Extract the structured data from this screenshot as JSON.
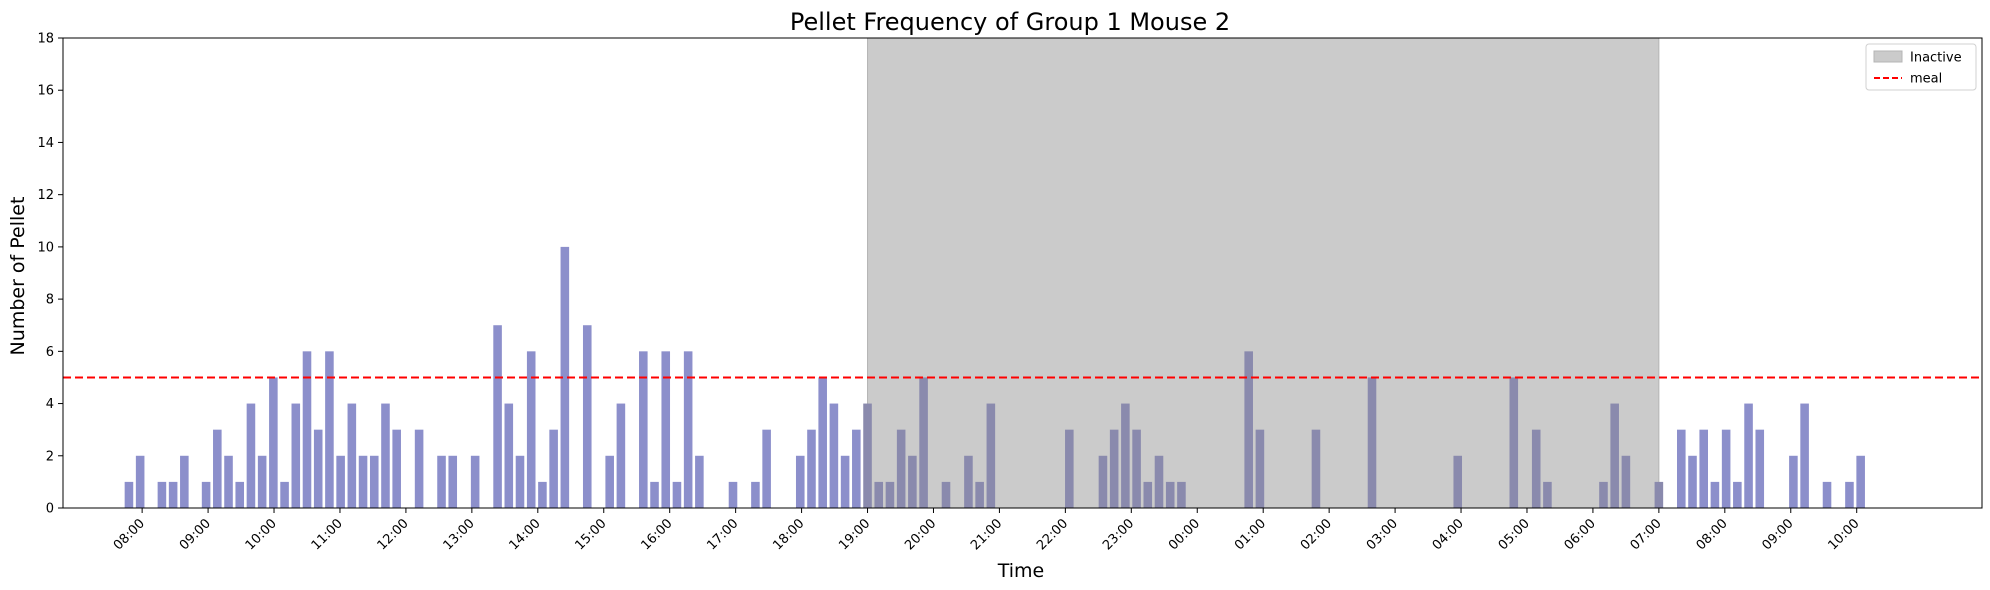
{
  "chart_data": {
    "type": "bar",
    "title": "Pellet Frequency of Group 1 Mouse 2",
    "xlabel": "Time",
    "ylabel": "Number of Pellet",
    "ylim": [
      0,
      18
    ],
    "yticks": [
      0,
      2,
      4,
      6,
      8,
      10,
      12,
      14,
      16,
      18
    ],
    "x_range_hours": [
      6.8,
      35.9
    ],
    "xticks": [
      {
        "hour": 8,
        "label": "08:00"
      },
      {
        "hour": 9,
        "label": "09:00"
      },
      {
        "hour": 10,
        "label": "10:00"
      },
      {
        "hour": 11,
        "label": "11:00"
      },
      {
        "hour": 12,
        "label": "12:00"
      },
      {
        "hour": 13,
        "label": "13:00"
      },
      {
        "hour": 14,
        "label": "14:00"
      },
      {
        "hour": 15,
        "label": "15:00"
      },
      {
        "hour": 16,
        "label": "16:00"
      },
      {
        "hour": 17,
        "label": "17:00"
      },
      {
        "hour": 18,
        "label": "18:00"
      },
      {
        "hour": 19,
        "label": "19:00"
      },
      {
        "hour": 20,
        "label": "20:00"
      },
      {
        "hour": 21,
        "label": "21:00"
      },
      {
        "hour": 22,
        "label": "22:00"
      },
      {
        "hour": 23,
        "label": "23:00"
      },
      {
        "hour": 24,
        "label": "00:00"
      },
      {
        "hour": 25,
        "label": "01:00"
      },
      {
        "hour": 26,
        "label": "02:00"
      },
      {
        "hour": 27,
        "label": "03:00"
      },
      {
        "hour": 28,
        "label": "04:00"
      },
      {
        "hour": 29,
        "label": "05:00"
      },
      {
        "hour": 30,
        "label": "06:00"
      },
      {
        "hour": 31,
        "label": "07:00"
      },
      {
        "hour": 32,
        "label": "08:00"
      },
      {
        "hour": 33,
        "label": "09:00"
      },
      {
        "hour": 34,
        "label": "10:00"
      }
    ],
    "inactive_period_hours": [
      19.0,
      31.0
    ],
    "meal_threshold": 5,
    "series": [
      {
        "name": "pellets",
        "color": "#8c8fcb",
        "bar_width_hours": 0.13,
        "points": [
          [
            7.8,
            1
          ],
          [
            7.97,
            2
          ],
          [
            8.3,
            1
          ],
          [
            8.47,
            1
          ],
          [
            8.64,
            2
          ],
          [
            8.97,
            1
          ],
          [
            9.14,
            3
          ],
          [
            9.31,
            2
          ],
          [
            9.48,
            1
          ],
          [
            9.65,
            4
          ],
          [
            9.82,
            2
          ],
          [
            9.99,
            5
          ],
          [
            10.16,
            1
          ],
          [
            10.33,
            4
          ],
          [
            10.5,
            6
          ],
          [
            10.67,
            3
          ],
          [
            10.84,
            6
          ],
          [
            11.01,
            2
          ],
          [
            11.18,
            4
          ],
          [
            11.35,
            2
          ],
          [
            11.52,
            2
          ],
          [
            11.69,
            4
          ],
          [
            11.86,
            3
          ],
          [
            12.2,
            3
          ],
          [
            12.54,
            2
          ],
          [
            12.71,
            2
          ],
          [
            13.05,
            2
          ],
          [
            13.39,
            7
          ],
          [
            13.56,
            4
          ],
          [
            13.73,
            2
          ],
          [
            13.9,
            6
          ],
          [
            14.07,
            1
          ],
          [
            14.24,
            3
          ],
          [
            14.41,
            10
          ],
          [
            14.75,
            7
          ],
          [
            15.09,
            2
          ],
          [
            15.26,
            4
          ],
          [
            15.6,
            6
          ],
          [
            15.77,
            1
          ],
          [
            15.94,
            6
          ],
          [
            16.11,
            1
          ],
          [
            16.28,
            6
          ],
          [
            16.45,
            2
          ],
          [
            16.96,
            1
          ],
          [
            17.3,
            1
          ],
          [
            17.47,
            3
          ],
          [
            17.98,
            2
          ],
          [
            18.15,
            3
          ],
          [
            18.32,
            5
          ],
          [
            18.49,
            4
          ],
          [
            18.66,
            2
          ],
          [
            18.83,
            3
          ],
          [
            19.0,
            4
          ],
          [
            19.17,
            1
          ],
          [
            19.34,
            1
          ],
          [
            19.51,
            3
          ],
          [
            19.68,
            2
          ],
          [
            19.85,
            5
          ],
          [
            20.19,
            1
          ],
          [
            20.53,
            2
          ],
          [
            20.7,
            1
          ],
          [
            20.87,
            4
          ],
          [
            22.06,
            3
          ],
          [
            22.57,
            2
          ],
          [
            22.74,
            3
          ],
          [
            22.91,
            4
          ],
          [
            23.08,
            3
          ],
          [
            23.25,
            1
          ],
          [
            23.42,
            2
          ],
          [
            23.59,
            1
          ],
          [
            23.76,
            1
          ],
          [
            24.78,
            6
          ],
          [
            24.95,
            3
          ],
          [
            25.8,
            3
          ],
          [
            26.65,
            5
          ],
          [
            27.95,
            2
          ],
          [
            28.8,
            5
          ],
          [
            29.14,
            3
          ],
          [
            29.31,
            1
          ],
          [
            30.16,
            1
          ],
          [
            30.33,
            4
          ],
          [
            30.5,
            2
          ],
          [
            31.0,
            1
          ],
          [
            31.34,
            3
          ],
          [
            31.51,
            2
          ],
          [
            31.68,
            3
          ],
          [
            31.85,
            1
          ],
          [
            32.02,
            3
          ],
          [
            32.19,
            1
          ],
          [
            32.36,
            4
          ],
          [
            32.53,
            3
          ],
          [
            33.04,
            2
          ],
          [
            33.21,
            4
          ],
          [
            33.55,
            1
          ],
          [
            33.89,
            1
          ],
          [
            34.06,
            2
          ]
        ]
      }
    ],
    "legend": {
      "placement": "top-right",
      "entries": [
        {
          "label": "Inactive",
          "style": "patch",
          "color": "#cbcbcb"
        },
        {
          "label": "meal",
          "style": "dashed-line",
          "color": "#ff0000"
        }
      ]
    },
    "grid": false
  }
}
